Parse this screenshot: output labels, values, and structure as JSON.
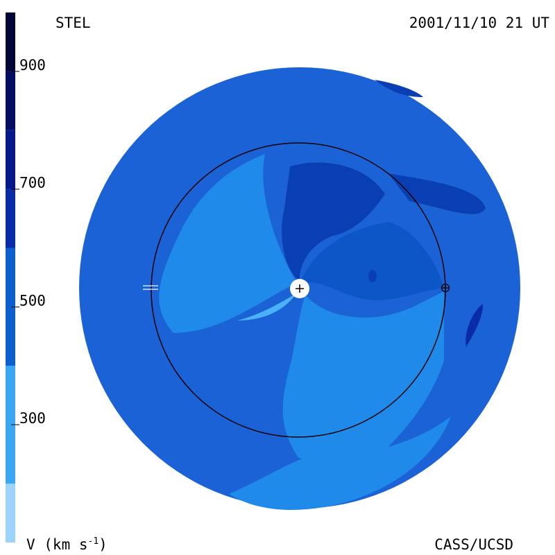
{
  "header": {
    "left": "STEL",
    "right": "2001/11/10 21 UT"
  },
  "footer": {
    "left": "V (km s",
    "left_sup": "-1",
    "left_end": ")",
    "right": "CASS/UCSD"
  },
  "colorbar": {
    "range": [
      100,
      1000
    ],
    "ticks": [
      300,
      500,
      700,
      900
    ],
    "bands": [
      {
        "from": 100,
        "to": 200,
        "color": "#9ed4fc"
      },
      {
        "from": 200,
        "to": 400,
        "color": "#3aa7f2"
      },
      {
        "from": 400,
        "to": 600,
        "color": "#0d5fd0"
      },
      {
        "from": 600,
        "to": 700,
        "color": "#0a2ba8"
      },
      {
        "from": 700,
        "to": 800,
        "color": "#06188a"
      },
      {
        "from": 800,
        "to": 900,
        "color": "#040e60"
      },
      {
        "from": 900,
        "to": 1000,
        "color": "#020738"
      }
    ]
  }
}
